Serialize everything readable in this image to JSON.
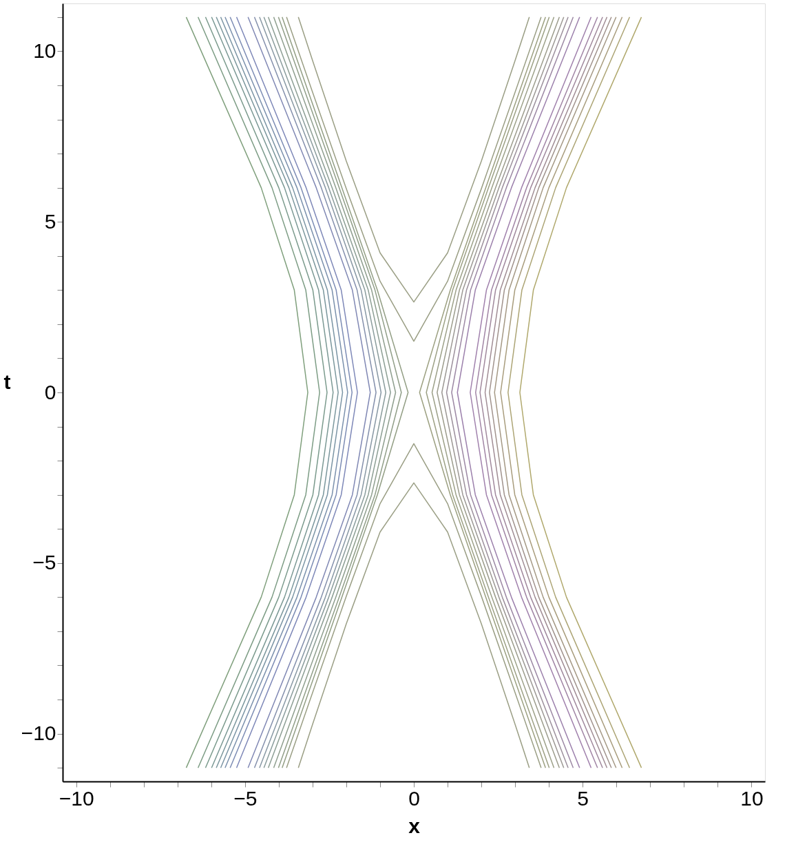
{
  "chart_data": {
    "type": "line",
    "xlabel": "x",
    "ylabel": "t",
    "xlim": [
      -10.4,
      10.4
    ],
    "ylim": [
      -11.4,
      11.4
    ],
    "xticks": [
      {
        "value": -10,
        "label": "−10"
      },
      {
        "value": -9,
        "label": null
      },
      {
        "value": -8,
        "label": null
      },
      {
        "value": -7,
        "label": null
      },
      {
        "value": -6,
        "label": null
      },
      {
        "value": -5,
        "label": "−5"
      },
      {
        "value": -4,
        "label": null
      },
      {
        "value": -3,
        "label": null
      },
      {
        "value": -2,
        "label": null
      },
      {
        "value": -1,
        "label": null
      },
      0,
      {
        "value": 1,
        "label": null
      },
      {
        "value": 2,
        "label": null
      },
      {
        "value": 3,
        "label": null
      },
      {
        "value": 4,
        "label": null
      },
      5,
      {
        "value": 6,
        "label": null
      },
      {
        "value": 7,
        "label": null
      },
      {
        "value": 8,
        "label": null
      },
      {
        "value": 9,
        "label": null
      },
      10
    ],
    "yticks": [
      {
        "value": -11,
        "label": null
      },
      {
        "value": -10,
        "label": "−10"
      },
      {
        "value": -9,
        "label": null
      },
      {
        "value": -8,
        "label": null
      },
      {
        "value": -7,
        "label": null
      },
      {
        "value": -6,
        "label": null
      },
      {
        "value": -5,
        "label": "−5"
      },
      {
        "value": -4,
        "label": null
      },
      {
        "value": -3,
        "label": null
      },
      {
        "value": -2,
        "label": null
      },
      {
        "value": -1,
        "label": null
      },
      0,
      {
        "value": 1,
        "label": null
      },
      {
        "value": 2,
        "label": null
      },
      {
        "value": 3,
        "label": null
      },
      {
        "value": 4,
        "label": null
      },
      5,
      {
        "value": 6,
        "label": null
      },
      {
        "value": 7,
        "label": null
      },
      {
        "value": 8,
        "label": null
      },
      {
        "value": 9,
        "label": null
      },
      10,
      {
        "value": 11,
        "label": null
      }
    ],
    "grid": false,
    "series": [
      {
        "color": "#7f9f7c",
        "x": [
          -6.74,
          -4.52,
          -3.54,
          -3.14,
          -3.54,
          -4.52,
          -6.74
        ],
        "values": [
          -11,
          -6,
          -3,
          0,
          3,
          6,
          11
        ]
      },
      {
        "color": "#7c9c84",
        "x": [
          -6.39,
          -4.2,
          -3.2,
          -2.79,
          -3.2,
          -4.2,
          -6.39
        ],
        "values": [
          -11,
          -6,
          -3,
          0,
          3,
          6,
          11
        ]
      },
      {
        "color": "#7a9a8c",
        "x": [
          -6.17,
          -4.0,
          -2.99,
          -2.57,
          -2.99,
          -4.0,
          -6.17
        ],
        "values": [
          -11,
          -6,
          -3,
          0,
          3,
          6,
          11
        ]
      },
      {
        "color": "#7a9894",
        "x": [
          -5.99,
          -3.83,
          -2.82,
          -2.39,
          -2.82,
          -3.83,
          -5.99
        ],
        "values": [
          -11,
          -6,
          -3,
          0,
          3,
          6,
          11
        ]
      },
      {
        "color": "#7a969c",
        "x": [
          -5.85,
          -3.7,
          -2.68,
          -2.24,
          -2.68,
          -3.7,
          -5.85
        ],
        "values": [
          -11,
          -6,
          -3,
          0,
          3,
          6,
          11
        ]
      },
      {
        "color": "#7a94a4",
        "x": [
          -5.72,
          -3.59,
          -2.56,
          -2.11,
          -2.56,
          -3.59,
          -5.72
        ],
        "values": [
          -11,
          -6,
          -3,
          0,
          3,
          6,
          11
        ]
      },
      {
        "color": "#7a90ac",
        "x": [
          -5.59,
          -3.46,
          -2.42,
          -1.96,
          -2.42,
          -3.46,
          -5.59
        ],
        "values": [
          -11,
          -6,
          -3,
          0,
          3,
          6,
          11
        ]
      },
      {
        "color": "#7c8cb4",
        "x": [
          -5.44,
          -3.34,
          -2.3,
          -1.83,
          -2.3,
          -3.34,
          -5.44
        ],
        "values": [
          -11,
          -6,
          -3,
          0,
          3,
          6,
          11
        ]
      },
      {
        "color": "#7e88b8",
        "x": [
          -5.25,
          -3.19,
          -2.15,
          -1.67,
          -2.15,
          -3.19,
          -5.25
        ],
        "values": [
          -11,
          -6,
          -3,
          0,
          3,
          6,
          11
        ]
      },
      {
        "color": "#8088b4",
        "x": [
          -4.91,
          -2.89,
          -1.82,
          -1.29,
          -1.82,
          -2.89,
          -4.91
        ],
        "values": [
          -11,
          -6,
          -3,
          0,
          3,
          6,
          11
        ]
      },
      {
        "color": "#8490ac",
        "x": [
          -4.72,
          -2.74,
          -1.68,
          -1.12,
          -1.68,
          -2.74,
          -4.72
        ],
        "values": [
          -11,
          -6,
          -3,
          0,
          3,
          6,
          11
        ]
      },
      {
        "color": "#8898a4",
        "x": [
          -4.57,
          -2.62,
          -1.56,
          -0.97,
          -1.56,
          -2.62,
          -4.57
        ],
        "values": [
          -11,
          -6,
          -3,
          0,
          3,
          6,
          11
        ]
      },
      {
        "color": "#8a9c9c",
        "x": [
          -4.44,
          -2.52,
          -1.45,
          -0.83,
          -1.45,
          -2.52,
          -4.44
        ],
        "values": [
          -11,
          -6,
          -3,
          0,
          3,
          6,
          11
        ]
      },
      {
        "color": "#8c9e94",
        "x": [
          -4.31,
          -2.42,
          -1.35,
          -0.69,
          -1.35,
          -2.42,
          -4.31
        ],
        "values": [
          -11,
          -6,
          -3,
          0,
          3,
          6,
          11
        ]
      },
      {
        "color": "#8e9e8e",
        "x": [
          -4.15,
          -2.31,
          -1.25,
          -0.54,
          -1.25,
          -2.31,
          -4.15
        ],
        "values": [
          -11,
          -6,
          -3,
          0,
          3,
          6,
          11
        ]
      },
      {
        "color": "#909e88",
        "x": [
          -4.01,
          -2.21,
          -1.15,
          -0.37,
          -1.15,
          -2.21,
          -4.01
        ],
        "values": [
          -11,
          -6,
          -3,
          0,
          3,
          6,
          11
        ]
      },
      {
        "color": "#929e84",
        "x": [
          -3.9,
          -2.13,
          -1.08,
          -0.17,
          -1.08,
          -2.13,
          -3.9
        ],
        "values": [
          -11,
          -6,
          -3,
          0,
          3,
          6,
          11
        ]
      },
      {
        "color": "#b0a86c",
        "x": [
          6.74,
          4.52,
          3.54,
          3.14,
          3.54,
          4.52,
          6.74
        ],
        "values": [
          -11,
          -6,
          -3,
          0,
          3,
          6,
          11
        ]
      },
      {
        "color": "#aca474",
        "x": [
          6.39,
          4.2,
          3.2,
          2.79,
          3.2,
          4.2,
          6.39
        ],
        "values": [
          -11,
          -6,
          -3,
          0,
          3,
          6,
          11
        ]
      },
      {
        "color": "#a89c7c",
        "x": [
          6.17,
          4.0,
          2.99,
          2.57,
          2.99,
          4.0,
          6.17
        ],
        "values": [
          -11,
          -6,
          -3,
          0,
          3,
          6,
          11
        ]
      },
      {
        "color": "#a49884",
        "x": [
          5.99,
          3.83,
          2.82,
          2.39,
          2.82,
          3.83,
          5.99
        ],
        "values": [
          -11,
          -6,
          -3,
          0,
          3,
          6,
          11
        ]
      },
      {
        "color": "#a0928c",
        "x": [
          5.85,
          3.7,
          2.68,
          2.24,
          2.68,
          3.7,
          5.85
        ],
        "values": [
          -11,
          -6,
          -3,
          0,
          3,
          6,
          11
        ]
      },
      {
        "color": "#a08c94",
        "x": [
          5.72,
          3.59,
          2.56,
          2.11,
          2.56,
          3.59,
          5.72
        ],
        "values": [
          -11,
          -6,
          -3,
          0,
          3,
          6,
          11
        ]
      },
      {
        "color": "#a0889c",
        "x": [
          5.59,
          3.46,
          2.42,
          1.96,
          2.42,
          3.46,
          5.59
        ],
        "values": [
          -11,
          -6,
          -3,
          0,
          3,
          6,
          11
        ]
      },
      {
        "color": "#a084a4",
        "x": [
          5.44,
          3.34,
          2.3,
          1.83,
          2.3,
          3.34,
          5.44
        ],
        "values": [
          -11,
          -6,
          -3,
          0,
          3,
          6,
          11
        ]
      },
      {
        "color": "#a080ac",
        "x": [
          5.25,
          3.19,
          2.15,
          1.67,
          2.15,
          3.19,
          5.25
        ],
        "values": [
          -11,
          -6,
          -3,
          0,
          3,
          6,
          11
        ]
      },
      {
        "color": "#9c80ac",
        "x": [
          4.91,
          2.89,
          1.82,
          1.29,
          1.82,
          2.89,
          4.91
        ],
        "values": [
          -11,
          -6,
          -3,
          0,
          3,
          6,
          11
        ]
      },
      {
        "color": "#9c88a4",
        "x": [
          4.72,
          2.74,
          1.68,
          1.12,
          1.68,
          2.74,
          4.72
        ],
        "values": [
          -11,
          -6,
          -3,
          0,
          3,
          6,
          11
        ]
      },
      {
        "color": "#9c909c",
        "x": [
          4.57,
          2.62,
          1.56,
          0.97,
          1.56,
          2.62,
          4.57
        ],
        "values": [
          -11,
          -6,
          -3,
          0,
          3,
          6,
          11
        ]
      },
      {
        "color": "#9c9894",
        "x": [
          4.44,
          2.52,
          1.45,
          0.83,
          1.45,
          2.52,
          4.44
        ],
        "values": [
          -11,
          -6,
          -3,
          0,
          3,
          6,
          11
        ]
      },
      {
        "color": "#9c9c8c",
        "x": [
          4.31,
          2.42,
          1.35,
          0.69,
          1.35,
          2.42,
          4.31
        ],
        "values": [
          -11,
          -6,
          -3,
          0,
          3,
          6,
          11
        ]
      },
      {
        "color": "#9ca088",
        "x": [
          4.15,
          2.31,
          1.25,
          0.54,
          1.25,
          2.31,
          4.15
        ],
        "values": [
          -11,
          -6,
          -3,
          0,
          3,
          6,
          11
        ]
      },
      {
        "color": "#9ca084",
        "x": [
          4.01,
          2.21,
          1.15,
          0.37,
          1.15,
          2.21,
          4.01
        ],
        "values": [
          -11,
          -6,
          -3,
          0,
          3,
          6,
          11
        ]
      },
      {
        "color": "#9ca080",
        "x": [
          3.9,
          2.13,
          1.08,
          0.17,
          1.08,
          2.13,
          3.9
        ],
        "values": [
          -11,
          -6,
          -3,
          0,
          3,
          6,
          11
        ]
      },
      {
        "color": "#9a9e84",
        "x": [
          -3.42,
          -3,
          -2,
          -1,
          0,
          1,
          2,
          3,
          3.42
        ],
        "values": [
          11,
          9.73,
          6.78,
          4.09,
          2.65,
          4.09,
          6.78,
          9.73,
          11
        ]
      },
      {
        "color": "#9a9e84",
        "x": [
          -3.77,
          -3,
          -2,
          -1,
          0,
          1,
          2,
          3,
          3.77
        ],
        "values": [
          11,
          8.8,
          5.97,
          3.26,
          1.5,
          3.26,
          5.97,
          8.8,
          11
        ]
      },
      {
        "color": "#9a9e84",
        "x": [
          -3.42,
          -3,
          -2,
          -1,
          0,
          1,
          2,
          3,
          3.42
        ],
        "values": [
          -11,
          -9.73,
          -6.78,
          -4.09,
          -2.65,
          -4.09,
          -6.78,
          -9.73,
          -11
        ]
      },
      {
        "color": "#9a9e84",
        "x": [
          -3.77,
          -3,
          -2,
          -1,
          0,
          1,
          2,
          3,
          3.77
        ],
        "values": [
          -11,
          -8.8,
          -5.97,
          -3.26,
          -1.5,
          -3.26,
          -5.97,
          -8.8,
          -11
        ]
      }
    ]
  }
}
